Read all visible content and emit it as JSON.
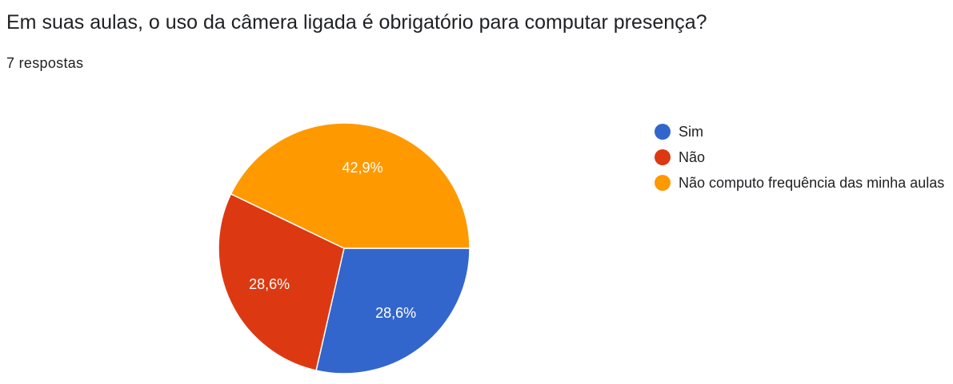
{
  "title": "Em suas aulas, o uso da câmera ligada é obrigatório para computar presença?",
  "response_count": "7 respostas",
  "chart_data": {
    "type": "pie",
    "title": "Em suas aulas, o uso da câmera ligada é obrigatório para computar presença?",
    "categories": [
      "Sim",
      "Não",
      "Não computo frequência das minha aulas"
    ],
    "values": [
      28.6,
      28.6,
      42.9
    ],
    "labels": [
      "28,6%",
      "28,6%",
      "42,9%"
    ],
    "colors": [
      "#3366cc",
      "#dc3912",
      "#ff9900"
    ],
    "legend_position": "right"
  }
}
